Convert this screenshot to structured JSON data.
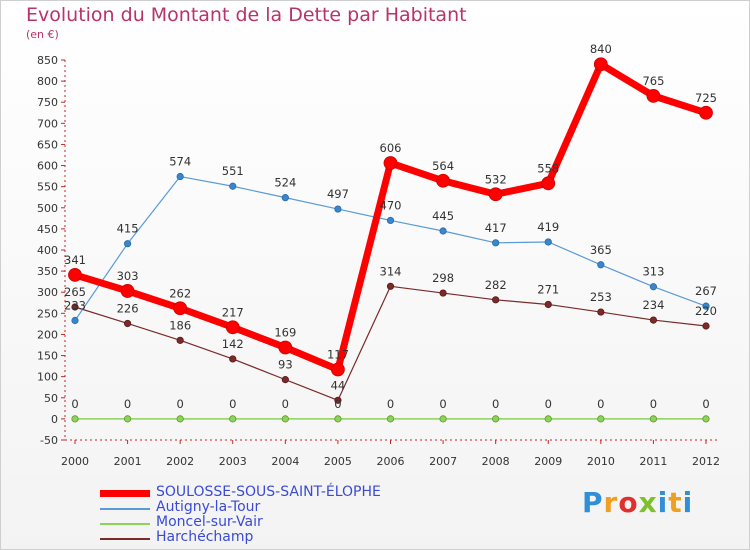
{
  "title": "Evolution du Montant de la Dette par Habitant",
  "subtitle": "(en €)",
  "logo": {
    "text": "Proxiti",
    "letters": [
      "P",
      "r",
      "o",
      "x",
      "i",
      "t",
      "i"
    ],
    "colors": [
      "#2f8fd8",
      "#f0a020",
      "#e0302e",
      "#80c030",
      "#2f8fd8",
      "#f0a020",
      "#2f8fd8"
    ]
  },
  "chart_data": {
    "type": "line",
    "title": "Evolution du Montant de la Dette par Habitant",
    "ylabel": "(en €)",
    "xlabel": "",
    "x": [
      "2000",
      "2001",
      "2002",
      "2003",
      "2004",
      "2005",
      "2006",
      "2007",
      "2008",
      "2009",
      "2010",
      "2011",
      "2012"
    ],
    "ylim": [
      -50,
      850
    ],
    "yticks": [
      -50,
      0,
      50,
      100,
      150,
      200,
      250,
      300,
      350,
      400,
      450,
      500,
      550,
      600,
      650,
      700,
      750,
      800,
      850
    ],
    "grid": false,
    "legend_position": "bottom-left",
    "series": [
      {
        "name": "SOULOSSE-SOUS-SAINT-ÉLOPHE",
        "color": "#ff0000",
        "values": [
          341,
          303,
          262,
          217,
          169,
          117,
          606,
          564,
          532,
          558,
          840,
          765,
          725
        ],
        "labels": [
          "341",
          "303",
          "262",
          "217",
          "169",
          "117",
          "606",
          "564",
          "532",
          "558",
          "840",
          "765",
          "725"
        ]
      },
      {
        "name": "Autigny-la-Tour",
        "color": "#5b9bd5",
        "values": [
          233,
          415,
          574,
          551,
          524,
          497,
          470,
          445,
          417,
          419,
          365,
          313,
          267
        ],
        "labels": [
          "233",
          "415",
          "574",
          "551",
          "524",
          "497",
          "470",
          "445",
          "417",
          "419",
          "365",
          "313",
          "267"
        ]
      },
      {
        "name": "Moncel-sur-Vair",
        "color": "#8ed25a",
        "values": [
          0,
          0,
          0,
          0,
          0,
          0,
          0,
          0,
          0,
          0,
          0,
          0,
          0
        ],
        "labels": [
          "0",
          "0",
          "0",
          "0",
          "0",
          "0",
          "0",
          "0",
          "0",
          "0",
          "0",
          "0",
          "0"
        ]
      },
      {
        "name": "Harchéchamp",
        "color": "#7b2a2a",
        "values": [
          265,
          226,
          186,
          142,
          93,
          44,
          314,
          298,
          282,
          271,
          253,
          234,
          220
        ],
        "labels": [
          "265",
          "226",
          "186",
          "142",
          "93",
          "44",
          "314",
          "298",
          "282",
          "271",
          "253",
          "234",
          "220"
        ]
      }
    ]
  }
}
